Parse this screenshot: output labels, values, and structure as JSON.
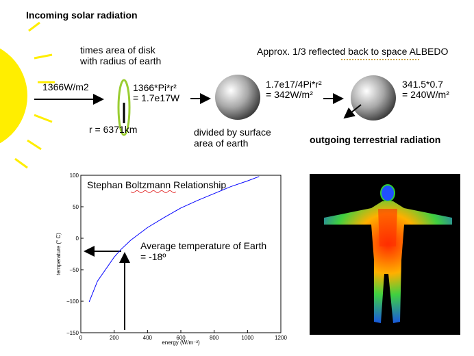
{
  "slide": {
    "title": "Incoming solar radiation",
    "flux": "1366W/m2",
    "disk_note": [
      "times area of disk",
      "with radius of earth"
    ],
    "disk_power": [
      "1366*Pi*r²",
      "= 1.7e17W"
    ],
    "radius": "r = 6371km",
    "surface_calc": [
      "1.7e17/4Pi*r²",
      "= 342W/m²"
    ],
    "surface_note": [
      "divided by surface",
      "area of earth"
    ],
    "albedo_note": "Approx. 1/3 reflected back to space ALBEDO",
    "outgoing_calc": [
      "341.5*0.7",
      "= 240W/m²"
    ],
    "outgoing_note": "outgoing terrestrial radiation"
  },
  "chart_data": {
    "type": "line",
    "title": "Stephan Boltzmann Relationship",
    "x_label": "energy (W/m⁻²)",
    "y_label": "temperature (° C)",
    "annotation": [
      "Average temperature of Earth",
      "= -18º"
    ],
    "x": [
      50,
      100,
      200,
      240,
      300,
      400,
      500,
      600,
      700,
      800,
      900,
      1000,
      1070
    ],
    "values": [
      -101,
      -68,
      -30,
      -18,
      -3,
      17,
      33,
      48,
      60,
      71,
      82,
      91,
      98
    ],
    "color": "#0000ff",
    "xlim": [
      0,
      1200
    ],
    "ylim": [
      -150,
      100
    ],
    "xticks": [
      0,
      200,
      400,
      600,
      800,
      1000,
      1200
    ],
    "yticks": [
      {
        "value": -150,
        "label": "−150"
      },
      {
        "value": -100,
        "label": "−100"
      },
      {
        "value": -50,
        "label": "−50"
      },
      0,
      50,
      100
    ],
    "grid": false
  }
}
